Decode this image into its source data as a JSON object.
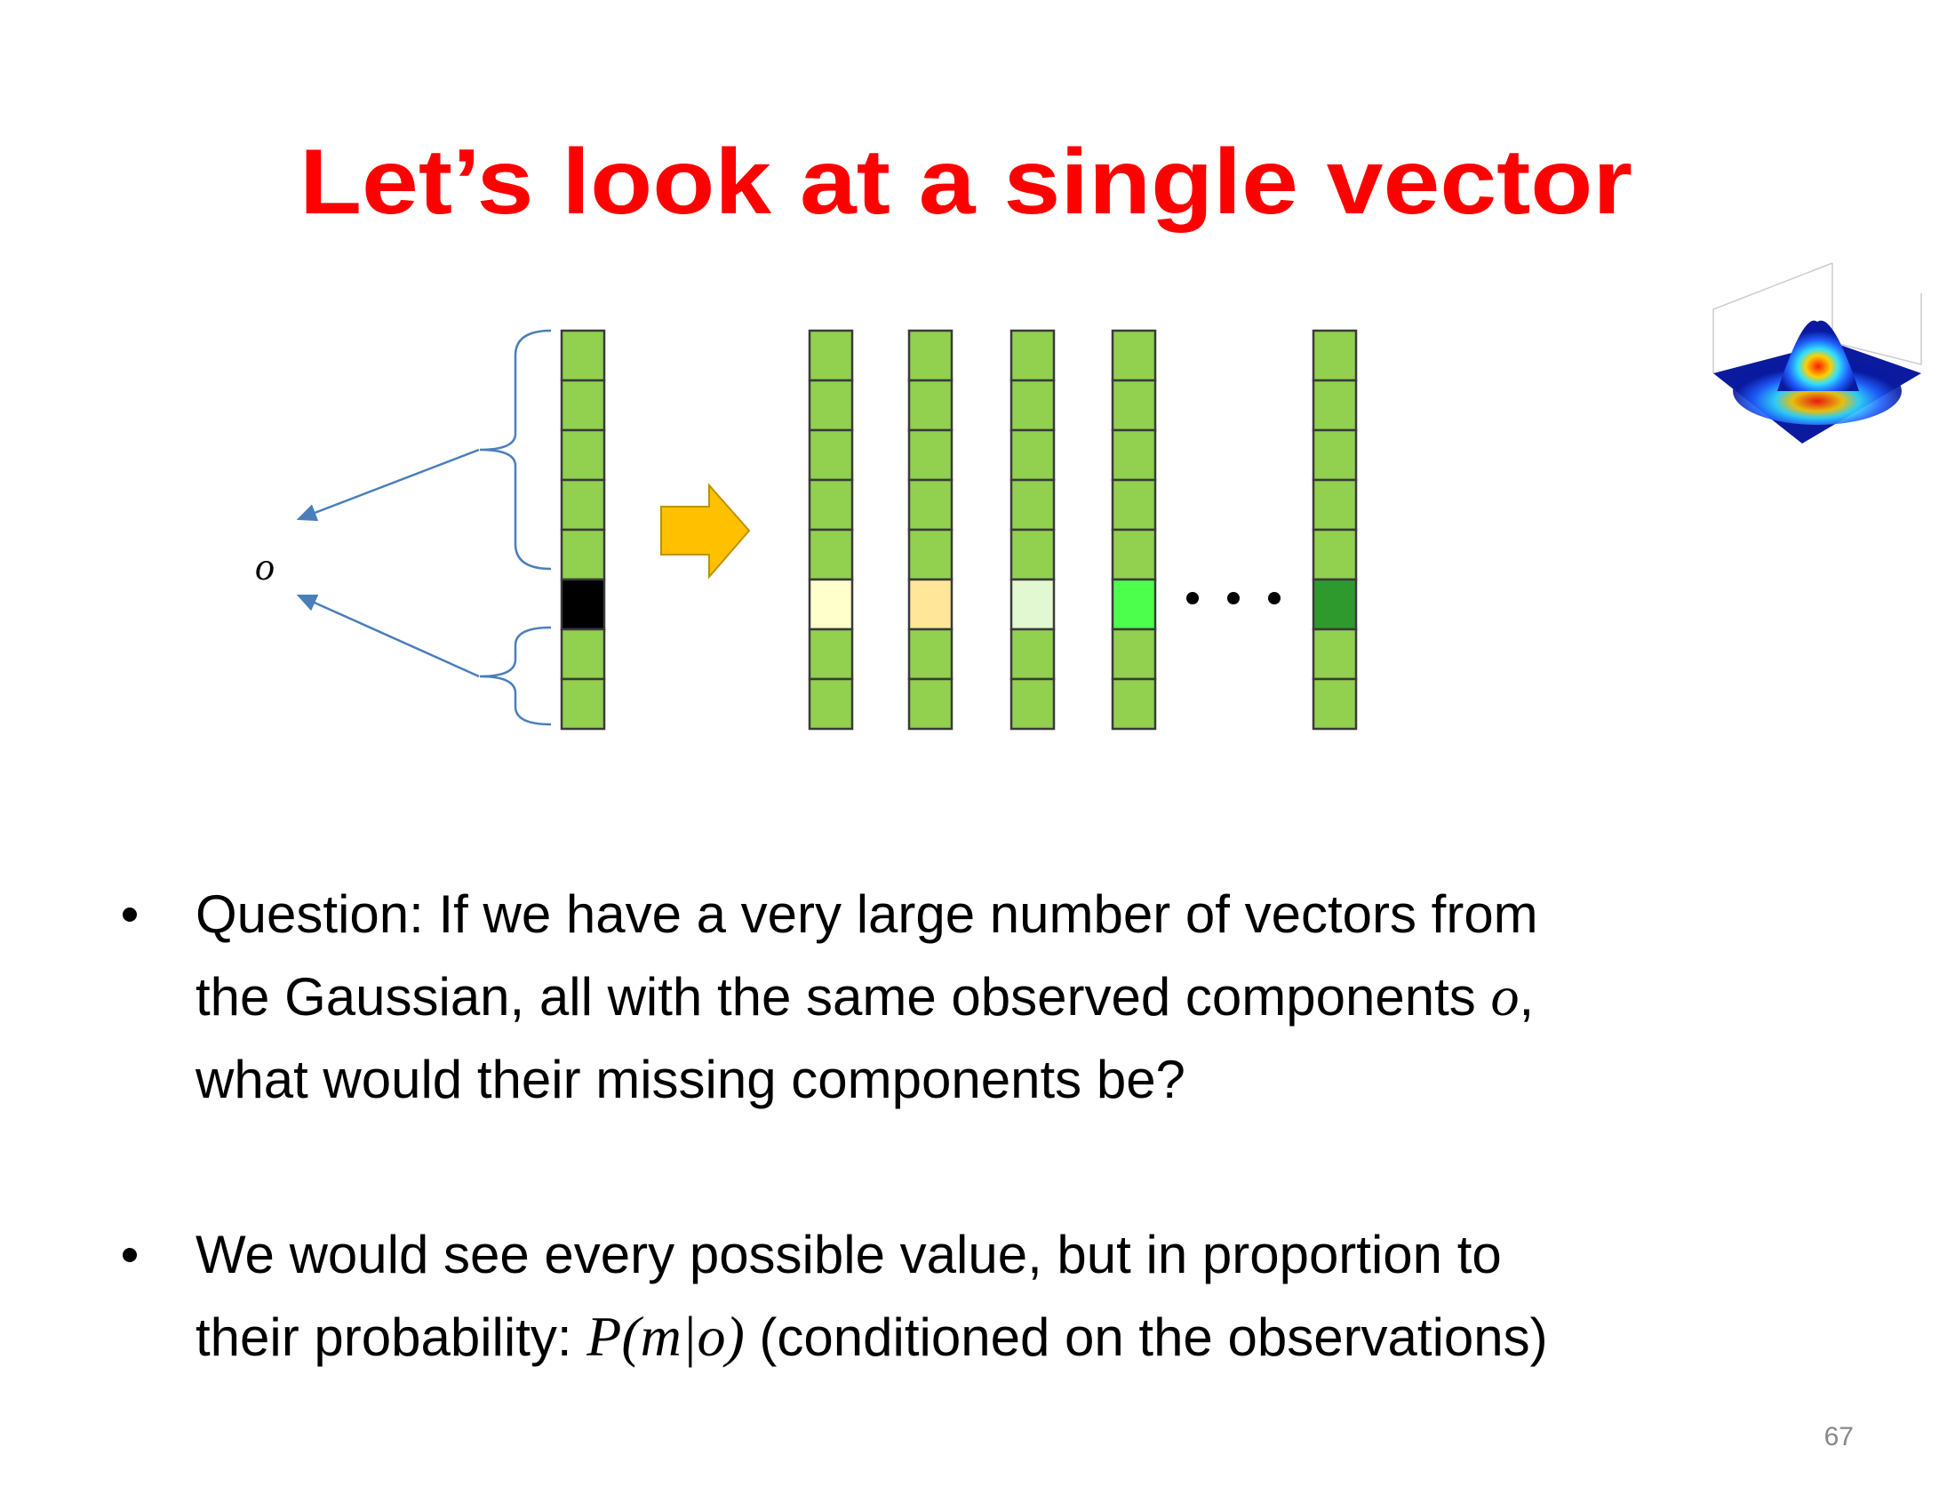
{
  "title": "Let’s look at a single vector",
  "diagram": {
    "observed_label": "o"
  },
  "bullets": [
    {
      "lines": [
        [
          {
            "text": "Question: If we have a very large number of vectors from"
          }
        ],
        [
          {
            "text": "the Gaussian, all with the same observed components "
          },
          {
            "math": "o"
          },
          {
            "text": ","
          }
        ],
        [
          {
            "text": "what would their missing components be?"
          }
        ]
      ]
    },
    {
      "lines": [
        [
          {
            "text": "We would see every possible value, but in proportion to"
          }
        ],
        [
          {
            "text": "their probability: "
          },
          {
            "math": "P(m|o)"
          },
          {
            "text": " (conditioned on the observations)"
          }
        ]
      ]
    }
  ],
  "page_number": "67"
}
